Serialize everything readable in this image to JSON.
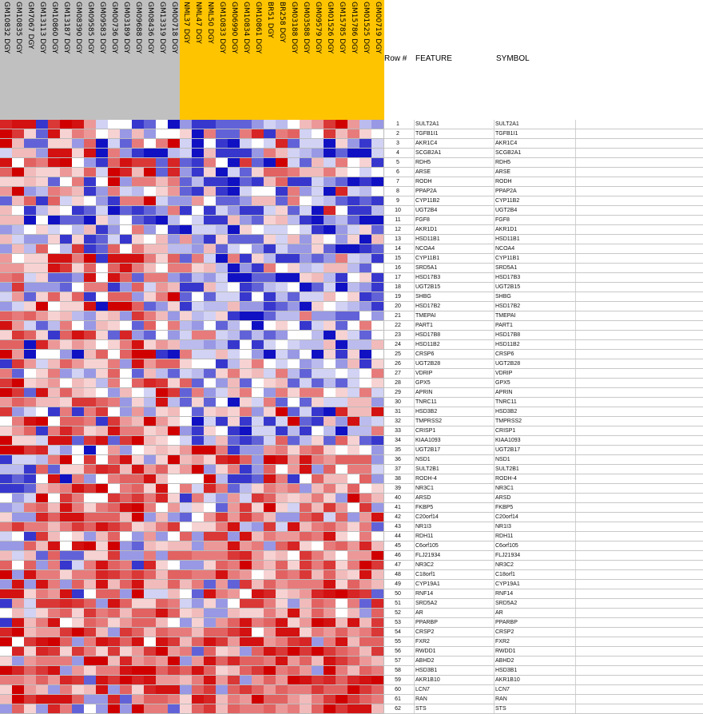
{
  "chart_data": {
    "type": "heatmap",
    "columns": [
      {
        "label": "GM10832 DGY",
        "group": "gray"
      },
      {
        "label": "GM10835 DGY",
        "group": "gray"
      },
      {
        "label": "GM7067 DGY",
        "group": "gray"
      },
      {
        "label": "GM13113 DGY",
        "group": "gray"
      },
      {
        "label": "GM10860 DGY",
        "group": "gray"
      },
      {
        "label": "GM13187 DGY",
        "group": "gray"
      },
      {
        "label": "GM08390 DGY",
        "group": "gray"
      },
      {
        "label": "GM09585 DGY",
        "group": "gray"
      },
      {
        "label": "GM09583 DGY",
        "group": "gray"
      },
      {
        "label": "GM00736 DGY",
        "group": "gray"
      },
      {
        "label": "GM03189 DGY",
        "group": "gray"
      },
      {
        "label": "GM09688 DGY",
        "group": "gray"
      },
      {
        "label": "GM08436 DGY",
        "group": "gray"
      },
      {
        "label": "GM13319 DGY",
        "group": "gray"
      },
      {
        "label": "GM00718 DGY",
        "group": "gray"
      },
      {
        "label": "NML37 DGY",
        "group": "orange"
      },
      {
        "label": "NML47 DGY",
        "group": "orange"
      },
      {
        "label": "NML50 DGY",
        "group": "orange"
      },
      {
        "label": "GM10833 DGY",
        "group": "orange"
      },
      {
        "label": "GM06990 DGY",
        "group": "orange"
      },
      {
        "label": "GM10834 DGY",
        "group": "orange"
      },
      {
        "label": "GM10861 DGY",
        "group": "orange"
      },
      {
        "label": "BR51 DGY",
        "group": "orange"
      },
      {
        "label": "BR258 DGY",
        "group": "orange"
      },
      {
        "label": "GM03188 DGY",
        "group": "orange"
      },
      {
        "label": "GM03588 DGY",
        "group": "orange"
      },
      {
        "label": "GM09579 DGY",
        "group": "orange"
      },
      {
        "label": "GM01526 DGY",
        "group": "orange"
      },
      {
        "label": "GM15785 DGY",
        "group": "orange"
      },
      {
        "label": "GM15786 DGY",
        "group": "orange"
      },
      {
        "label": "GM01525 DGY",
        "group": "orange"
      },
      {
        "label": "GM00719 DGY",
        "group": "orange"
      }
    ],
    "group_colors": {
      "gray": "#c0c0c0",
      "orange": "#ffc400"
    },
    "table_headers": {
      "row": "Row #",
      "feature": "FEATURE",
      "symbol": "SYMBOL"
    },
    "rows": [
      {
        "n": "1",
        "feature": "SULT2A1",
        "symbol": "SULT2A1"
      },
      {
        "n": "2",
        "feature": "TGFB1I1",
        "symbol": "TGFB1I1"
      },
      {
        "n": "3",
        "feature": "AKR1C4",
        "symbol": "AKR1C4"
      },
      {
        "n": "4",
        "feature": "SCGB2A1",
        "symbol": "SCGB2A1"
      },
      {
        "n": "5",
        "feature": "RDH5",
        "symbol": "RDH5"
      },
      {
        "n": "6",
        "feature": "ARSE",
        "symbol": "ARSE"
      },
      {
        "n": "7",
        "feature": "RODH",
        "symbol": "RODH"
      },
      {
        "n": "8",
        "feature": "PPAP2A",
        "symbol": "PPAP2A"
      },
      {
        "n": "9",
        "feature": "CYP11B2",
        "symbol": "CYP11B2"
      },
      {
        "n": "10",
        "feature": "UGT2B4",
        "symbol": "UGT2B4"
      },
      {
        "n": "11",
        "feature": "FGF8",
        "symbol": "FGF8"
      },
      {
        "n": "12",
        "feature": "AKR1D1",
        "symbol": "AKR1D1"
      },
      {
        "n": "13",
        "feature": "HSD11B1",
        "symbol": "HSD11B1"
      },
      {
        "n": "14",
        "feature": "NCOA4",
        "symbol": "NCOA4"
      },
      {
        "n": "15",
        "feature": "CYP11B1",
        "symbol": "CYP11B1"
      },
      {
        "n": "16",
        "feature": "SRD5A1",
        "symbol": "SRD5A1"
      },
      {
        "n": "17",
        "feature": "HSD17B3",
        "symbol": "HSD17B3"
      },
      {
        "n": "18",
        "feature": "UGT2B15",
        "symbol": "UGT2B15"
      },
      {
        "n": "19",
        "feature": "SHBG",
        "symbol": "SHBG"
      },
      {
        "n": "20",
        "feature": "HSD17B2",
        "symbol": "HSD17B2"
      },
      {
        "n": "21",
        "feature": "TMEPAI",
        "symbol": "TMEPAI"
      },
      {
        "n": "22",
        "feature": "PART1",
        "symbol": "PART1"
      },
      {
        "n": "23",
        "feature": "HSD17B8",
        "symbol": "HSD17B8"
      },
      {
        "n": "24",
        "feature": "HSD11B2",
        "symbol": "HSD11B2"
      },
      {
        "n": "25",
        "feature": "CRSP6",
        "symbol": "CRSP6"
      },
      {
        "n": "26",
        "feature": "UGT2B28",
        "symbol": "UGT2B28"
      },
      {
        "n": "27",
        "feature": "VDRIP",
        "symbol": "VDRIP"
      },
      {
        "n": "28",
        "feature": "GPX5",
        "symbol": "GPX5"
      },
      {
        "n": "29",
        "feature": "APRIN",
        "symbol": "APRIN"
      },
      {
        "n": "30",
        "feature": "TNRC11",
        "symbol": "TNRC11"
      },
      {
        "n": "31",
        "feature": "HSD3B2",
        "symbol": "HSD3B2"
      },
      {
        "n": "32",
        "feature": "TMPRSS2",
        "symbol": "TMPRSS2"
      },
      {
        "n": "33",
        "feature": "CRISP1",
        "symbol": "CRISP1"
      },
      {
        "n": "34",
        "feature": "KIAA1093",
        "symbol": "KIAA1093"
      },
      {
        "n": "35",
        "feature": "UGT2B17",
        "symbol": "UGT2B17"
      },
      {
        "n": "36",
        "feature": "NSD1",
        "symbol": "NSD1"
      },
      {
        "n": "37",
        "feature": "SULT2B1",
        "symbol": "SULT2B1"
      },
      {
        "n": "38",
        "feature": "RODH-4",
        "symbol": "RODH-4"
      },
      {
        "n": "39",
        "feature": "NR3C1",
        "symbol": "NR3C1"
      },
      {
        "n": "40",
        "feature": "ARSD",
        "symbol": "ARSD"
      },
      {
        "n": "41",
        "feature": "FKBP5",
        "symbol": "FKBP5"
      },
      {
        "n": "42",
        "feature": "C20orf14",
        "symbol": "C20orf14"
      },
      {
        "n": "43",
        "feature": "NR1I3",
        "symbol": "NR1I3"
      },
      {
        "n": "44",
        "feature": "RDH11",
        "symbol": "RDH11"
      },
      {
        "n": "45",
        "feature": "C6orf105",
        "symbol": "C6orf105"
      },
      {
        "n": "46",
        "feature": "FLJ21934",
        "symbol": "FLJ21934"
      },
      {
        "n": "47",
        "feature": "NR3C2",
        "symbol": "NR3C2"
      },
      {
        "n": "48",
        "feature": "C18orf1",
        "symbol": "C18orf1"
      },
      {
        "n": "49",
        "feature": "CYP19A1",
        "symbol": "CYP19A1"
      },
      {
        "n": "50",
        "feature": "RNF14",
        "symbol": "RNF14"
      },
      {
        "n": "51",
        "feature": "SRD5A2",
        "symbol": "SRD5A2"
      },
      {
        "n": "52",
        "feature": "AR",
        "symbol": "AR"
      },
      {
        "n": "53",
        "feature": "PPARBP",
        "symbol": "PPARBP"
      },
      {
        "n": "54",
        "feature": "CRSP2",
        "symbol": "CRSP2"
      },
      {
        "n": "55",
        "feature": "FXR2",
        "symbol": "FXR2"
      },
      {
        "n": "56",
        "feature": "RWDD1",
        "symbol": "RWDD1"
      },
      {
        "n": "57",
        "feature": "ABHD2",
        "symbol": "ABHD2"
      },
      {
        "n": "58",
        "feature": "HSD3B1",
        "symbol": "HSD3B1"
      },
      {
        "n": "59",
        "feature": "AKR1B10",
        "symbol": "AKR1B10"
      },
      {
        "n": "60",
        "feature": "LCN7",
        "symbol": "LCN7"
      },
      {
        "n": "61",
        "feature": "RAN",
        "symbol": "RAN"
      },
      {
        "n": "62",
        "feature": "STS",
        "symbol": "STS"
      }
    ],
    "color_scale": {
      "low": "#0000c0",
      "mid": "#ffffff",
      "high": "#d00000"
    },
    "values": [
      "gHHBGhHfbcJBCcADBBCCCDbacefGhfaD",
      "hGdCHdEfcdDeDJcdAECCEgBEFbJGeEdc",
      "heCCddDFAbCEcEhbAcBAbcbgCbbAdDBb",
      "beeDHHdHAEDBAAabAeBBBDEebaDACAAb",
      "HcFEHhcDBFHGGCgCBEcAGCAhbCebEcdB",
      "FheddfdFbhgehCgDBdAbCdFFEeeEdcbc",
      "ddedCcEBchDEEeECaBBACBeFBBbDCABA",
      "fhDaEfeBDEbacdfCBeBAbccBEDbAgbac",
      "CeFBFbdcDBEEhbDDfcCCDeeCEcbaCBCB",
      "ecBadcBCbACBCDEBcBbDBBbdCbAgcBBa",
      "eeAcACCAdacCBAacbBBeDCdeaBADaCAA",
      "DacdbcaeBDcEDcBAbbaAdcbbcbBADbdC",
      "ebDDdBdBCbBdceDfDBdCCCdbeDdcDdAe",
      "DeaFcaGBCFcEeeaaDeCbcDBbDDdCAABC",
      "fcddHHEhBHHHEdFCEbAEBdaBBDCDEbaB",
      "ffddHGdFcFHEecEEdeaADBEcdabeeaCc",
      "EFbdCCDHcHFCEEDCaDbAACCAAdeaBcdB",
      "DGDDDCcEEBDFbfeBBebcBCabcACbAaDB",
      "bfCdFdFBcFFDdEhCcCbbBcBaCbbecdBC",
      "DbdhcddHAhhFCDdBbaaeDDBCDAdcbaDB",
      "FEFfdeaDdeDGEeDdabdBAACaaEDDCCcD",
      "HfbCaEcDedcCFcEaDcCacAcdcBbdCcEc",
      "dGFdBFHGdCgDCcDbEEbaCaCDccaAdbCc",
      "FFAgfdfecdEHdfeaaDaBcBbcbaaeAaae",
      "hfAccDAeFcFhhBAEbbebcDAbDcAdBdAc",
      "BGfbeFfddEDHfFFdccBadEcbcDacDeBd",
      "ECcdEDbDdFcCeaCbaCdEdebEaCbbcbcE",
      "GhdefcedaEcFgGdFCcDeCcdeCbCaCbcd",
      "hGCHeFedcDecbhGCEDbeEcDEdEEcdbEb",
      "fFEeedGGFEDdaHaCdCcAdbECcCdbbeeD",
      "GDbcBEBEGcDfDdecCdedEDdhCbBAgeeH",
      "cEHhcFFEBGfehfdcAbBdBbBbhCBeDHab",
      "dfFBEgFdeHEEdehDBdcBAbbBaBcaAaaE",
      "hddbHHCGHCGhedcbBaeCBCbFCadCFdCB",
      "hhGgbDcAcfDcdedfhhEBDDfEdEFdcdcD",
      "BbbaEhcGcFHdDdhefdgHFDhHfHEfFFFD",
      "aaBFCddFgGeHfFdfhDdEBDFcfHDFcEEb",
      "BCBcHAEDcEFFHeccchaBBCHEBcFeecFD",
      "BBCefEHGhcEFdHcEbgECadEfEDeEdFcd",
      "cDbhcGEccGFGEgdBEbDfbGFedeEdDhEe",
      "DaEFeHEdEFHhEcfbdcCfGdhdbFeGfcGD",
      "dDDgFHHFFFehDeDCcfGfGEeDDFGbFDfH",
      "EGEEeEGFHGFdeEGcddEHaDGbHeEFfdEC",
      "bcBGecdDeFcDfDcFDGGDHeEffFEHdcEc",
      "DDFeHcHhdhDCedeeDffHfEDFgdcEFfge",
      "ebeCFCCddGDDEDFFEEEGgfdecGEecffh",
      "FcFDEBbEHFEBgdcDDdFEhfeFdGEGdEhG",
      "hDHEEdEEgGFGFeFFEEHEfcdFEGeFedHe",
      "DHDHEDFeHeFHeeFeECfCGeFfEEEHdFfe",
      "HHdEfHBcFFDhbbecCHEfcHgdefgHhgGC",
      "BfbGGgGFDHFddFEbDdDcGGEdDeFEcECg",
      "cebdEFdGEFeFFHFdeDDeddEeHeFfceDF",
      "BHeEHcdFEdfFFecDdDfFHEFHdfhHeHeG",
      "gheffGhGeDGFeFEEeFFGHcfHHdEfFfEG",
      "hcGHhFDEHgFHcHGeFHGfHHfEGgDEHeFF",
      "cgdgGdGEdGdfGhfECFdeDFHGhGhGFEeG",
      "dDfEEEDhhegfEfhDfHFgFFEHfFeHGFfe",
      "hgFGHDfdEEHhhFGFHFdeFGhEFfDhEeFE",
      "EEfFfgGCHGhgHffeEHfGDfFfhHGgFgHh",
      "dhfeDEdeHDFdgHHDFGDFGFfFEEGFFhGF",
      "ehGHHHFDDgCfFFEdHgeEfhFFfeEGhGFE",
      "DFdDgECcDhDhEECdFGeFEEFfEeFhGHHe"
    ],
    "value_encoding": "A=-4 B=-3 C=-2 D=-1 a=-0.5 b=-0.25 c=0 d=0.25 e=0.5 f=1 E=1.5 F=2 G=3 g=3.5 H=4 h=4.5"
  }
}
